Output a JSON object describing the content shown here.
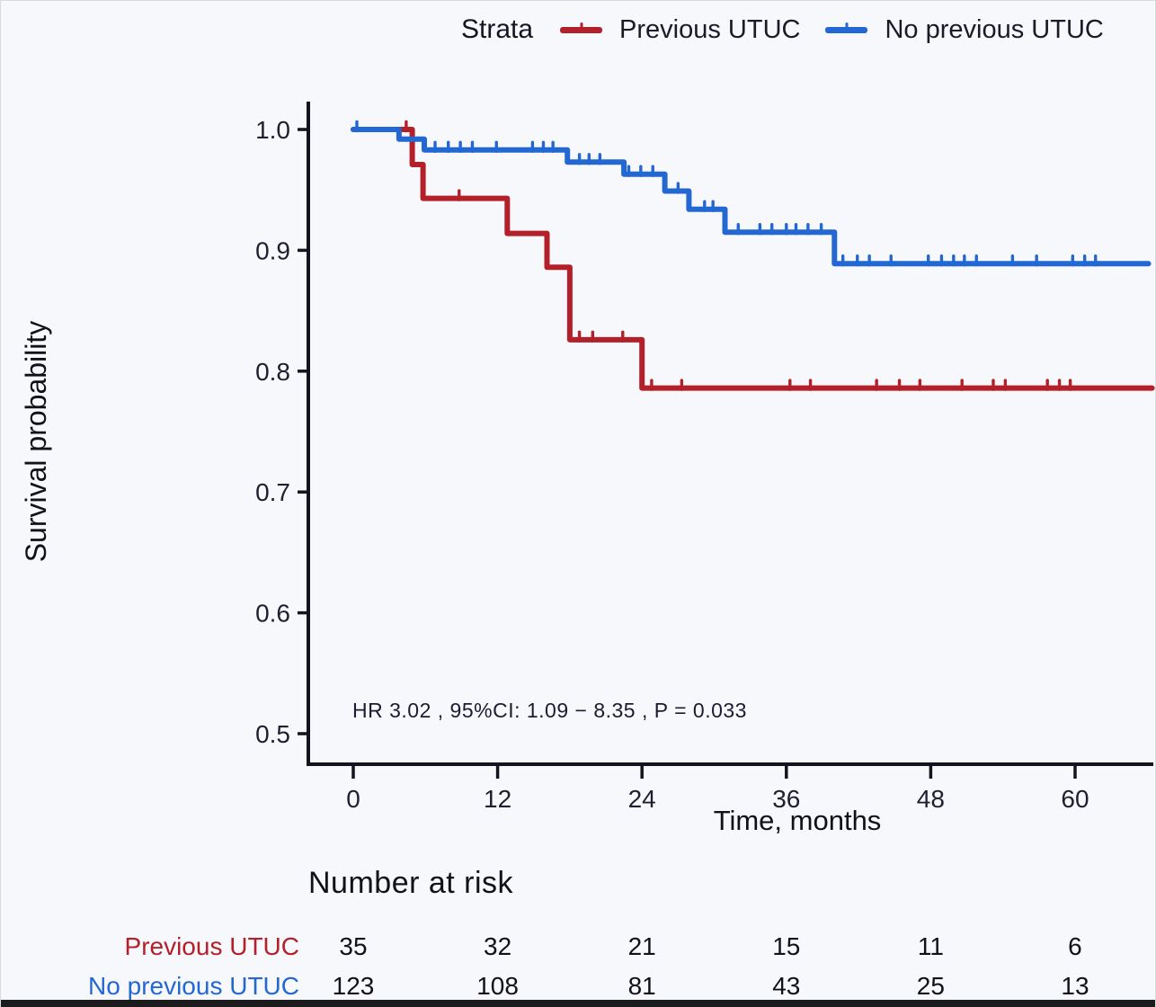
{
  "legend": {
    "title": "Strata",
    "items": [
      {
        "label": "Previous UTUC",
        "color": "#b3202a"
      },
      {
        "label": "No previous UTUC",
        "color": "#2368d2"
      }
    ]
  },
  "chart_data": {
    "type": "line",
    "subtype": "kaplan-meier-step",
    "title": "",
    "xlabel": "Time, months",
    "ylabel": "Survival probability",
    "x_ticks": [
      0,
      12,
      24,
      36,
      48,
      60
    ],
    "y_ticks": [
      1.0,
      0.9,
      0.8,
      0.7,
      0.6,
      0.5
    ],
    "xlim": [
      0,
      66.5
    ],
    "ylim": [
      0.47,
      1.02
    ],
    "grid": "off",
    "legend_position": "top",
    "annotation": "HR  3.02 , 95%CI:  1.09 − 8.35 ,  P = 0.033",
    "axis_color": "#15131f",
    "tick_text_color": "#201e30",
    "series": [
      {
        "name": "Previous UTUC",
        "color": "#b3202a",
        "steps": [
          [
            0,
            1.0
          ],
          [
            4.9,
            0.971
          ],
          [
            5.8,
            0.943
          ],
          [
            12.8,
            0.914
          ],
          [
            16.1,
            0.886
          ],
          [
            18.0,
            0.826
          ],
          [
            24.0,
            0.786
          ],
          [
            66.4,
            0.786
          ]
        ],
        "censors": [
          [
            4.4,
            1.0
          ],
          [
            8.8,
            0.943
          ],
          [
            18.8,
            0.826
          ],
          [
            19.9,
            0.826
          ],
          [
            22.4,
            0.826
          ],
          [
            24.8,
            0.786
          ],
          [
            27.3,
            0.786
          ],
          [
            36.3,
            0.786
          ],
          [
            38.0,
            0.786
          ],
          [
            43.5,
            0.786
          ],
          [
            45.4,
            0.786
          ],
          [
            47.1,
            0.786
          ],
          [
            50.6,
            0.786
          ],
          [
            53.2,
            0.786
          ],
          [
            54.2,
            0.786
          ],
          [
            57.7,
            0.786
          ],
          [
            58.7,
            0.786
          ],
          [
            59.6,
            0.786
          ]
        ]
      },
      {
        "name": "No previous UTUC",
        "color": "#2368d2",
        "steps": [
          [
            0,
            1.0
          ],
          [
            3.8,
            0.992
          ],
          [
            5.9,
            0.983
          ],
          [
            17.8,
            0.973
          ],
          [
            22.5,
            0.963
          ],
          [
            25.9,
            0.949
          ],
          [
            27.9,
            0.934
          ],
          [
            30.9,
            0.915
          ],
          [
            40.0,
            0.889
          ],
          [
            66.1,
            0.889
          ]
        ],
        "censors": [
          [
            0.3,
            1.0
          ],
          [
            6.8,
            0.983
          ],
          [
            7.9,
            0.983
          ],
          [
            8.9,
            0.983
          ],
          [
            9.9,
            0.983
          ],
          [
            11.9,
            0.983
          ],
          [
            14.9,
            0.983
          ],
          [
            15.8,
            0.983
          ],
          [
            16.6,
            0.983
          ],
          [
            18.8,
            0.973
          ],
          [
            19.6,
            0.973
          ],
          [
            20.5,
            0.973
          ],
          [
            22.9,
            0.963
          ],
          [
            23.9,
            0.963
          ],
          [
            24.9,
            0.963
          ],
          [
            27.0,
            0.949
          ],
          [
            29.2,
            0.934
          ],
          [
            29.9,
            0.934
          ],
          [
            32.0,
            0.915
          ],
          [
            33.8,
            0.915
          ],
          [
            34.8,
            0.915
          ],
          [
            36.0,
            0.915
          ],
          [
            36.8,
            0.915
          ],
          [
            37.8,
            0.915
          ],
          [
            38.9,
            0.915
          ],
          [
            40.7,
            0.889
          ],
          [
            41.9,
            0.889
          ],
          [
            42.9,
            0.889
          ],
          [
            44.7,
            0.889
          ],
          [
            47.8,
            0.889
          ],
          [
            48.9,
            0.889
          ],
          [
            49.9,
            0.889
          ],
          [
            50.8,
            0.889
          ],
          [
            51.8,
            0.889
          ],
          [
            54.8,
            0.889
          ],
          [
            56.8,
            0.889
          ],
          [
            59.8,
            0.889
          ],
          [
            60.8,
            0.889
          ],
          [
            61.7,
            0.889
          ]
        ]
      }
    ],
    "risk_table": {
      "title": "Number at risk",
      "times": [
        0,
        12,
        24,
        36,
        48,
        60
      ],
      "rows": [
        {
          "label": "Previous UTUC",
          "color": "#b3202a",
          "values": [
            35,
            32,
            21,
            15,
            11,
            6
          ]
        },
        {
          "label": "No previous UTUC",
          "color": "#2368d2",
          "values": [
            123,
            108,
            81,
            43,
            25,
            13
          ]
        }
      ]
    }
  }
}
